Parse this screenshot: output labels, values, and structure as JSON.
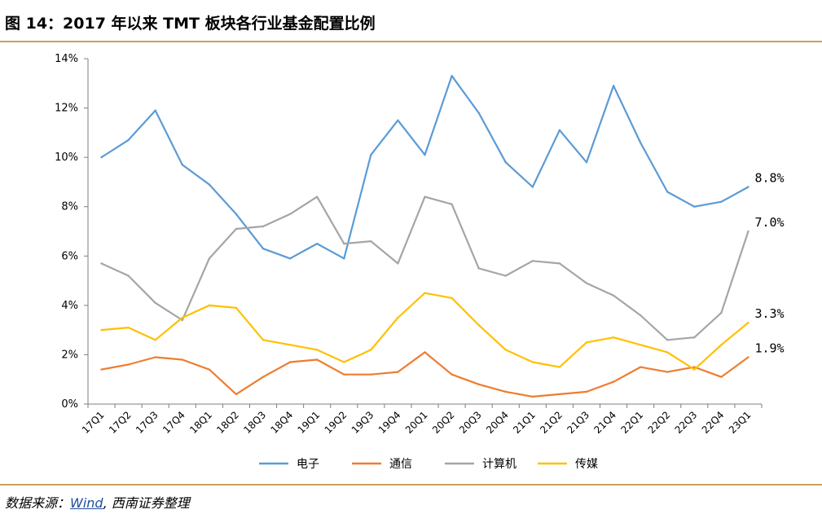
{
  "figure": {
    "title": "图 14：2017 年以来 TMT 板块各行业基金配置比例"
  },
  "source": {
    "prefix": "数据来源：",
    "link": "Wind",
    "suffix": ", 西南证券整理"
  },
  "chart_data": {
    "type": "line",
    "categories": [
      "17Q1",
      "17Q2",
      "17Q3",
      "17Q4",
      "18Q1",
      "18Q2",
      "18Q3",
      "18Q4",
      "19Q1",
      "19Q2",
      "19Q3",
      "19Q4",
      "20Q1",
      "20Q2",
      "20Q3",
      "20Q4",
      "21Q1",
      "21Q2",
      "21Q3",
      "21Q4",
      "22Q1",
      "22Q2",
      "22Q3",
      "22Q4",
      "23Q1"
    ],
    "y_ticks": [
      "0%",
      "2%",
      "4%",
      "6%",
      "8%",
      "10%",
      "12%",
      "14%"
    ],
    "ylim": [
      0,
      14
    ],
    "grid": false,
    "legend_position": "bottom",
    "series": [
      {
        "name": "电子",
        "color": "#5b9bd5",
        "values": [
          10.0,
          10.7,
          11.9,
          9.7,
          8.9,
          7.7,
          6.3,
          5.9,
          6.5,
          5.9,
          10.1,
          11.5,
          10.1,
          13.3,
          11.8,
          9.8,
          8.8,
          11.1,
          9.8,
          12.9,
          10.6,
          8.6,
          8.0,
          8.2,
          8.8
        ],
        "end_label": "8.8%"
      },
      {
        "name": "通信",
        "color": "#ed7d31",
        "values": [
          1.4,
          1.6,
          1.9,
          1.8,
          1.4,
          0.4,
          1.1,
          1.7,
          1.8,
          1.2,
          1.2,
          1.3,
          2.1,
          1.2,
          0.8,
          0.5,
          0.3,
          0.4,
          0.5,
          0.9,
          1.5,
          1.3,
          1.5,
          1.1,
          1.9
        ],
        "end_label": "1.9%"
      },
      {
        "name": "计算机",
        "color": "#a5a5a5",
        "values": [
          5.7,
          5.2,
          4.1,
          3.4,
          5.9,
          7.1,
          7.2,
          7.7,
          8.4,
          6.5,
          6.6,
          5.7,
          8.4,
          8.1,
          5.5,
          5.2,
          5.8,
          5.7,
          4.9,
          4.4,
          3.6,
          2.6,
          2.7,
          3.7,
          7.0
        ],
        "end_label": "7.0%"
      },
      {
        "name": "传媒",
        "color": "#ffc000",
        "values": [
          3.0,
          3.1,
          2.6,
          3.5,
          4.0,
          3.9,
          2.6,
          2.4,
          2.2,
          1.7,
          2.2,
          3.5,
          4.5,
          4.3,
          3.2,
          2.2,
          1.7,
          1.5,
          2.5,
          2.7,
          2.4,
          2.1,
          1.4,
          2.4,
          3.3
        ],
        "end_label": "3.3%"
      }
    ]
  }
}
